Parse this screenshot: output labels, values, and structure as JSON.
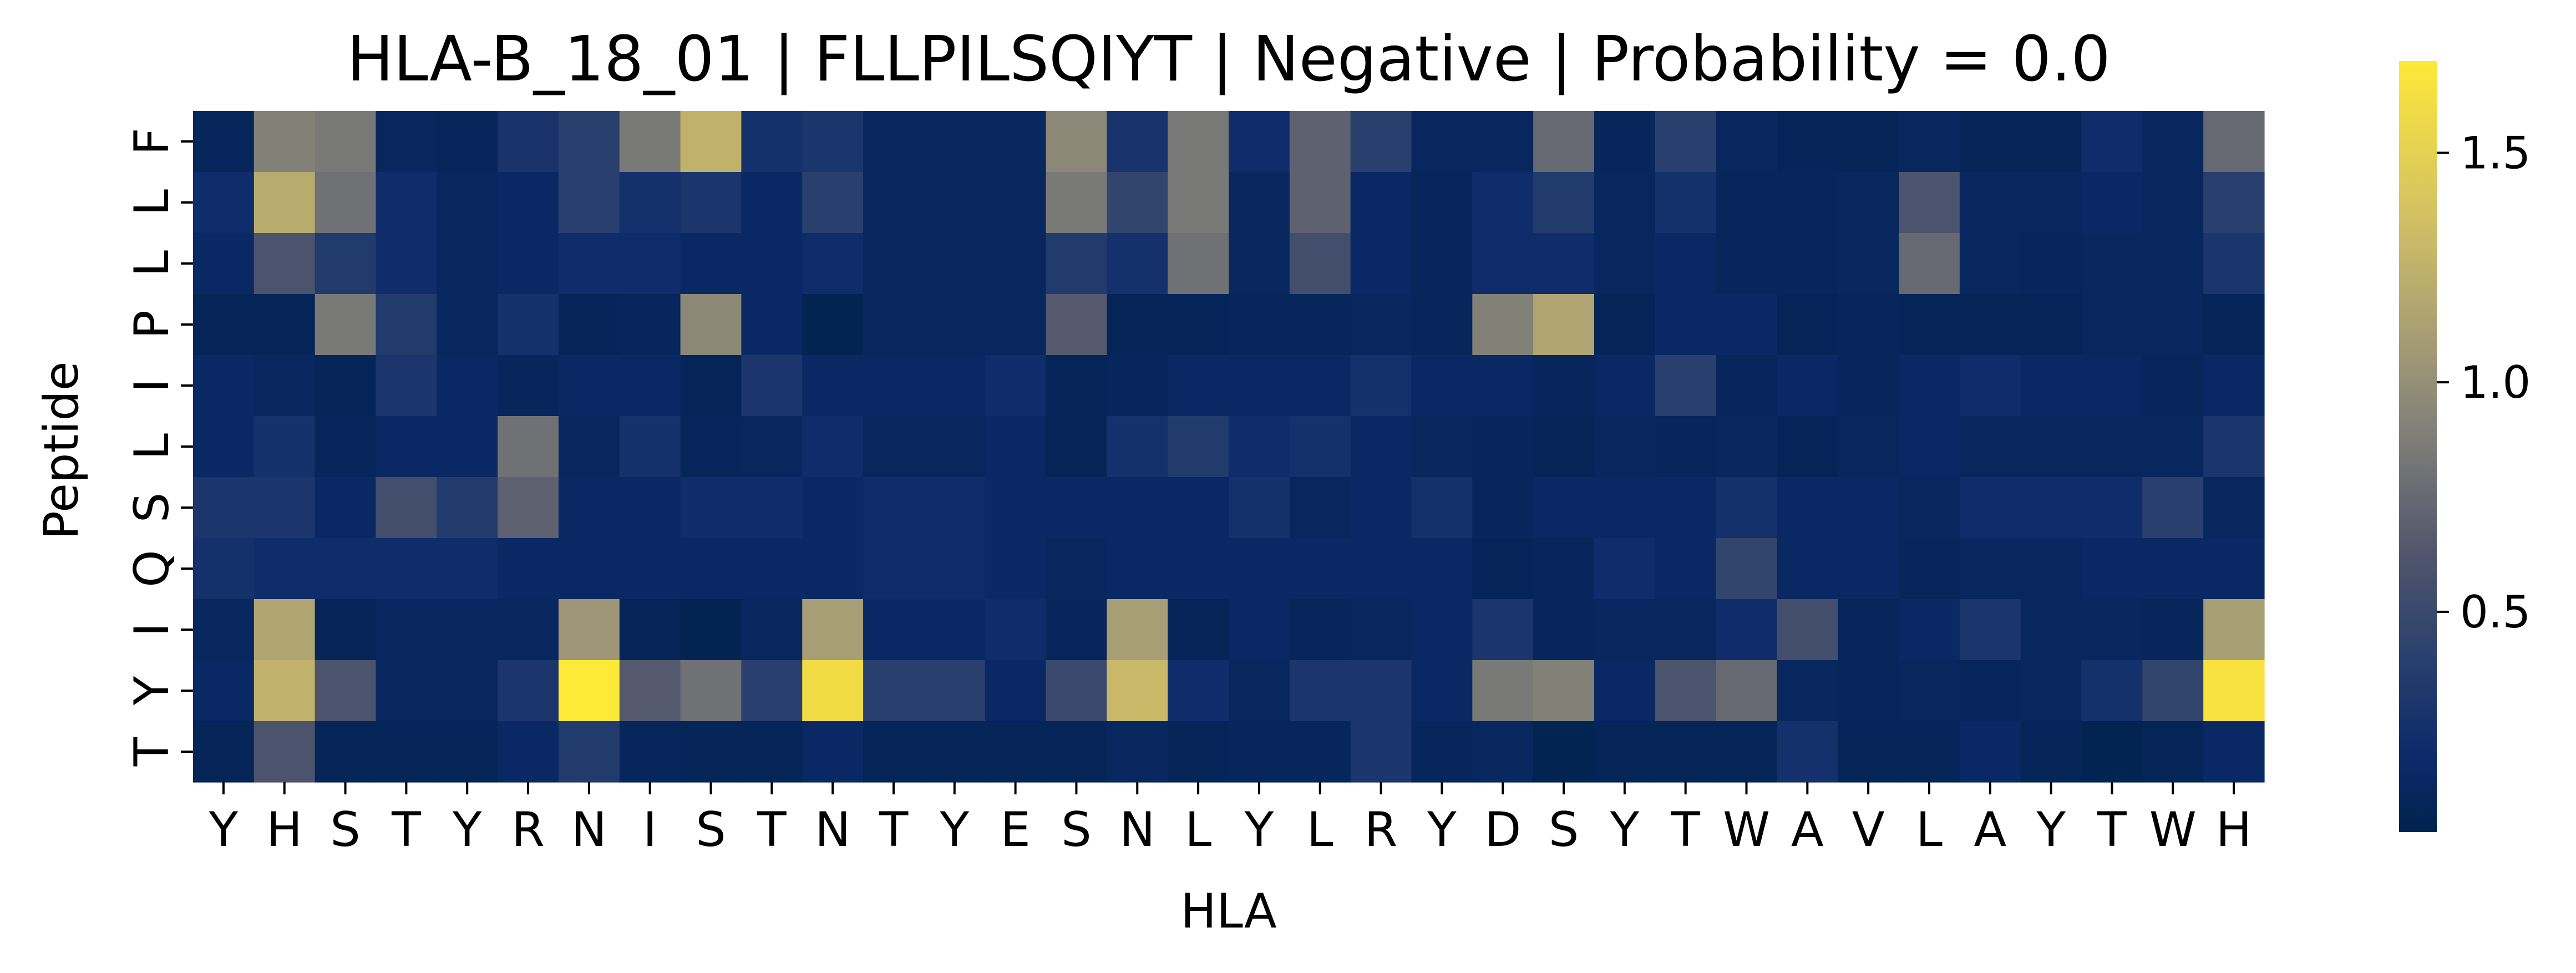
{
  "chart_data": {
    "type": "heatmap",
    "title": "HLA-B_18_01 | FLLPILSQIYT | Negative | Probability = 0.0",
    "xlabel": "HLA",
    "ylabel": "Peptide",
    "x_categories": [
      "Y",
      "H",
      "S",
      "T",
      "Y",
      "R",
      "N",
      "I",
      "S",
      "T",
      "N",
      "T",
      "Y",
      "E",
      "S",
      "N",
      "L",
      "Y",
      "L",
      "R",
      "Y",
      "D",
      "S",
      "Y",
      "T",
      "W",
      "A",
      "V",
      "L",
      "A",
      "Y",
      "T",
      "W",
      "H"
    ],
    "y_categories": [
      "F",
      "L",
      "L",
      "P",
      "I",
      "L",
      "S",
      "Q",
      "I",
      "Y",
      "T"
    ],
    "colormap": "cividis",
    "vmin": 0.02,
    "vmax": 1.7,
    "colorbar_ticks": [
      0.5,
      1.0,
      1.5
    ],
    "colorbar_tick_labels": [
      "0.5",
      "1.0",
      "1.5"
    ],
    "values": [
      [
        0.1,
        0.9,
        0.85,
        0.12,
        0.1,
        0.28,
        0.4,
        0.85,
        1.25,
        0.25,
        0.3,
        0.12,
        0.12,
        0.12,
        0.95,
        0.28,
        0.85,
        0.2,
        0.7,
        0.4,
        0.12,
        0.12,
        0.75,
        0.1,
        0.4,
        0.12,
        0.08,
        0.08,
        0.12,
        0.08,
        0.08,
        0.2,
        0.12,
        0.75
      ],
      [
        0.2,
        1.2,
        0.8,
        0.2,
        0.12,
        0.15,
        0.4,
        0.25,
        0.3,
        0.15,
        0.4,
        0.12,
        0.12,
        0.12,
        0.85,
        0.45,
        0.85,
        0.12,
        0.7,
        0.15,
        0.1,
        0.2,
        0.35,
        0.12,
        0.25,
        0.1,
        0.1,
        0.12,
        0.6,
        0.12,
        0.12,
        0.15,
        0.12,
        0.4
      ],
      [
        0.15,
        0.6,
        0.35,
        0.2,
        0.12,
        0.15,
        0.2,
        0.2,
        0.15,
        0.15,
        0.2,
        0.12,
        0.12,
        0.12,
        0.35,
        0.25,
        0.8,
        0.12,
        0.55,
        0.15,
        0.1,
        0.2,
        0.2,
        0.12,
        0.15,
        0.1,
        0.1,
        0.12,
        0.75,
        0.12,
        0.1,
        0.12,
        0.12,
        0.3
      ],
      [
        0.08,
        0.08,
        0.85,
        0.35,
        0.12,
        0.25,
        0.08,
        0.1,
        0.95,
        0.15,
        0.05,
        0.12,
        0.12,
        0.12,
        0.65,
        0.08,
        0.08,
        0.1,
        0.1,
        0.12,
        0.1,
        0.9,
        1.15,
        0.08,
        0.15,
        0.15,
        0.08,
        0.1,
        0.08,
        0.08,
        0.08,
        0.12,
        0.12,
        0.08
      ],
      [
        0.15,
        0.12,
        0.08,
        0.3,
        0.15,
        0.1,
        0.15,
        0.15,
        0.08,
        0.3,
        0.15,
        0.15,
        0.15,
        0.2,
        0.08,
        0.1,
        0.15,
        0.15,
        0.15,
        0.25,
        0.15,
        0.15,
        0.1,
        0.15,
        0.4,
        0.1,
        0.15,
        0.1,
        0.15,
        0.2,
        0.15,
        0.15,
        0.1,
        0.15
      ],
      [
        0.15,
        0.25,
        0.1,
        0.15,
        0.15,
        0.8,
        0.12,
        0.25,
        0.1,
        0.12,
        0.2,
        0.12,
        0.12,
        0.15,
        0.08,
        0.25,
        0.35,
        0.2,
        0.25,
        0.15,
        0.12,
        0.1,
        0.08,
        0.12,
        0.1,
        0.12,
        0.08,
        0.12,
        0.15,
        0.12,
        0.12,
        0.12,
        0.12,
        0.3
      ],
      [
        0.3,
        0.3,
        0.15,
        0.55,
        0.35,
        0.7,
        0.15,
        0.15,
        0.2,
        0.2,
        0.15,
        0.2,
        0.2,
        0.15,
        0.15,
        0.15,
        0.15,
        0.25,
        0.12,
        0.15,
        0.25,
        0.1,
        0.15,
        0.15,
        0.15,
        0.25,
        0.15,
        0.15,
        0.12,
        0.2,
        0.2,
        0.2,
        0.4,
        0.12
      ],
      [
        0.25,
        0.2,
        0.2,
        0.2,
        0.2,
        0.15,
        0.15,
        0.15,
        0.15,
        0.15,
        0.15,
        0.2,
        0.2,
        0.15,
        0.12,
        0.15,
        0.15,
        0.15,
        0.15,
        0.15,
        0.15,
        0.08,
        0.1,
        0.2,
        0.15,
        0.45,
        0.15,
        0.15,
        0.1,
        0.12,
        0.12,
        0.15,
        0.15,
        0.15
      ],
      [
        0.12,
        1.15,
        0.08,
        0.12,
        0.12,
        0.12,
        1.05,
        0.08,
        0.05,
        0.12,
        1.1,
        0.15,
        0.15,
        0.2,
        0.1,
        1.1,
        0.08,
        0.15,
        0.1,
        0.12,
        0.15,
        0.3,
        0.1,
        0.12,
        0.12,
        0.2,
        0.55,
        0.1,
        0.15,
        0.3,
        0.12,
        0.12,
        0.1,
        1.1
      ],
      [
        0.15,
        1.25,
        0.6,
        0.12,
        0.12,
        0.3,
        1.7,
        0.65,
        0.8,
        0.4,
        1.6,
        0.4,
        0.4,
        0.15,
        0.5,
        1.3,
        0.2,
        0.12,
        0.3,
        0.3,
        0.15,
        0.85,
        0.9,
        0.15,
        0.6,
        0.75,
        0.12,
        0.1,
        0.12,
        0.1,
        0.12,
        0.25,
        0.45,
        1.65
      ],
      [
        0.08,
        0.6,
        0.08,
        0.08,
        0.08,
        0.15,
        0.35,
        0.1,
        0.08,
        0.08,
        0.15,
        0.08,
        0.08,
        0.08,
        0.08,
        0.12,
        0.08,
        0.1,
        0.1,
        0.3,
        0.1,
        0.12,
        0.05,
        0.08,
        0.08,
        0.08,
        0.25,
        0.08,
        0.08,
        0.15,
        0.08,
        0.05,
        0.08,
        0.15
      ]
    ]
  }
}
